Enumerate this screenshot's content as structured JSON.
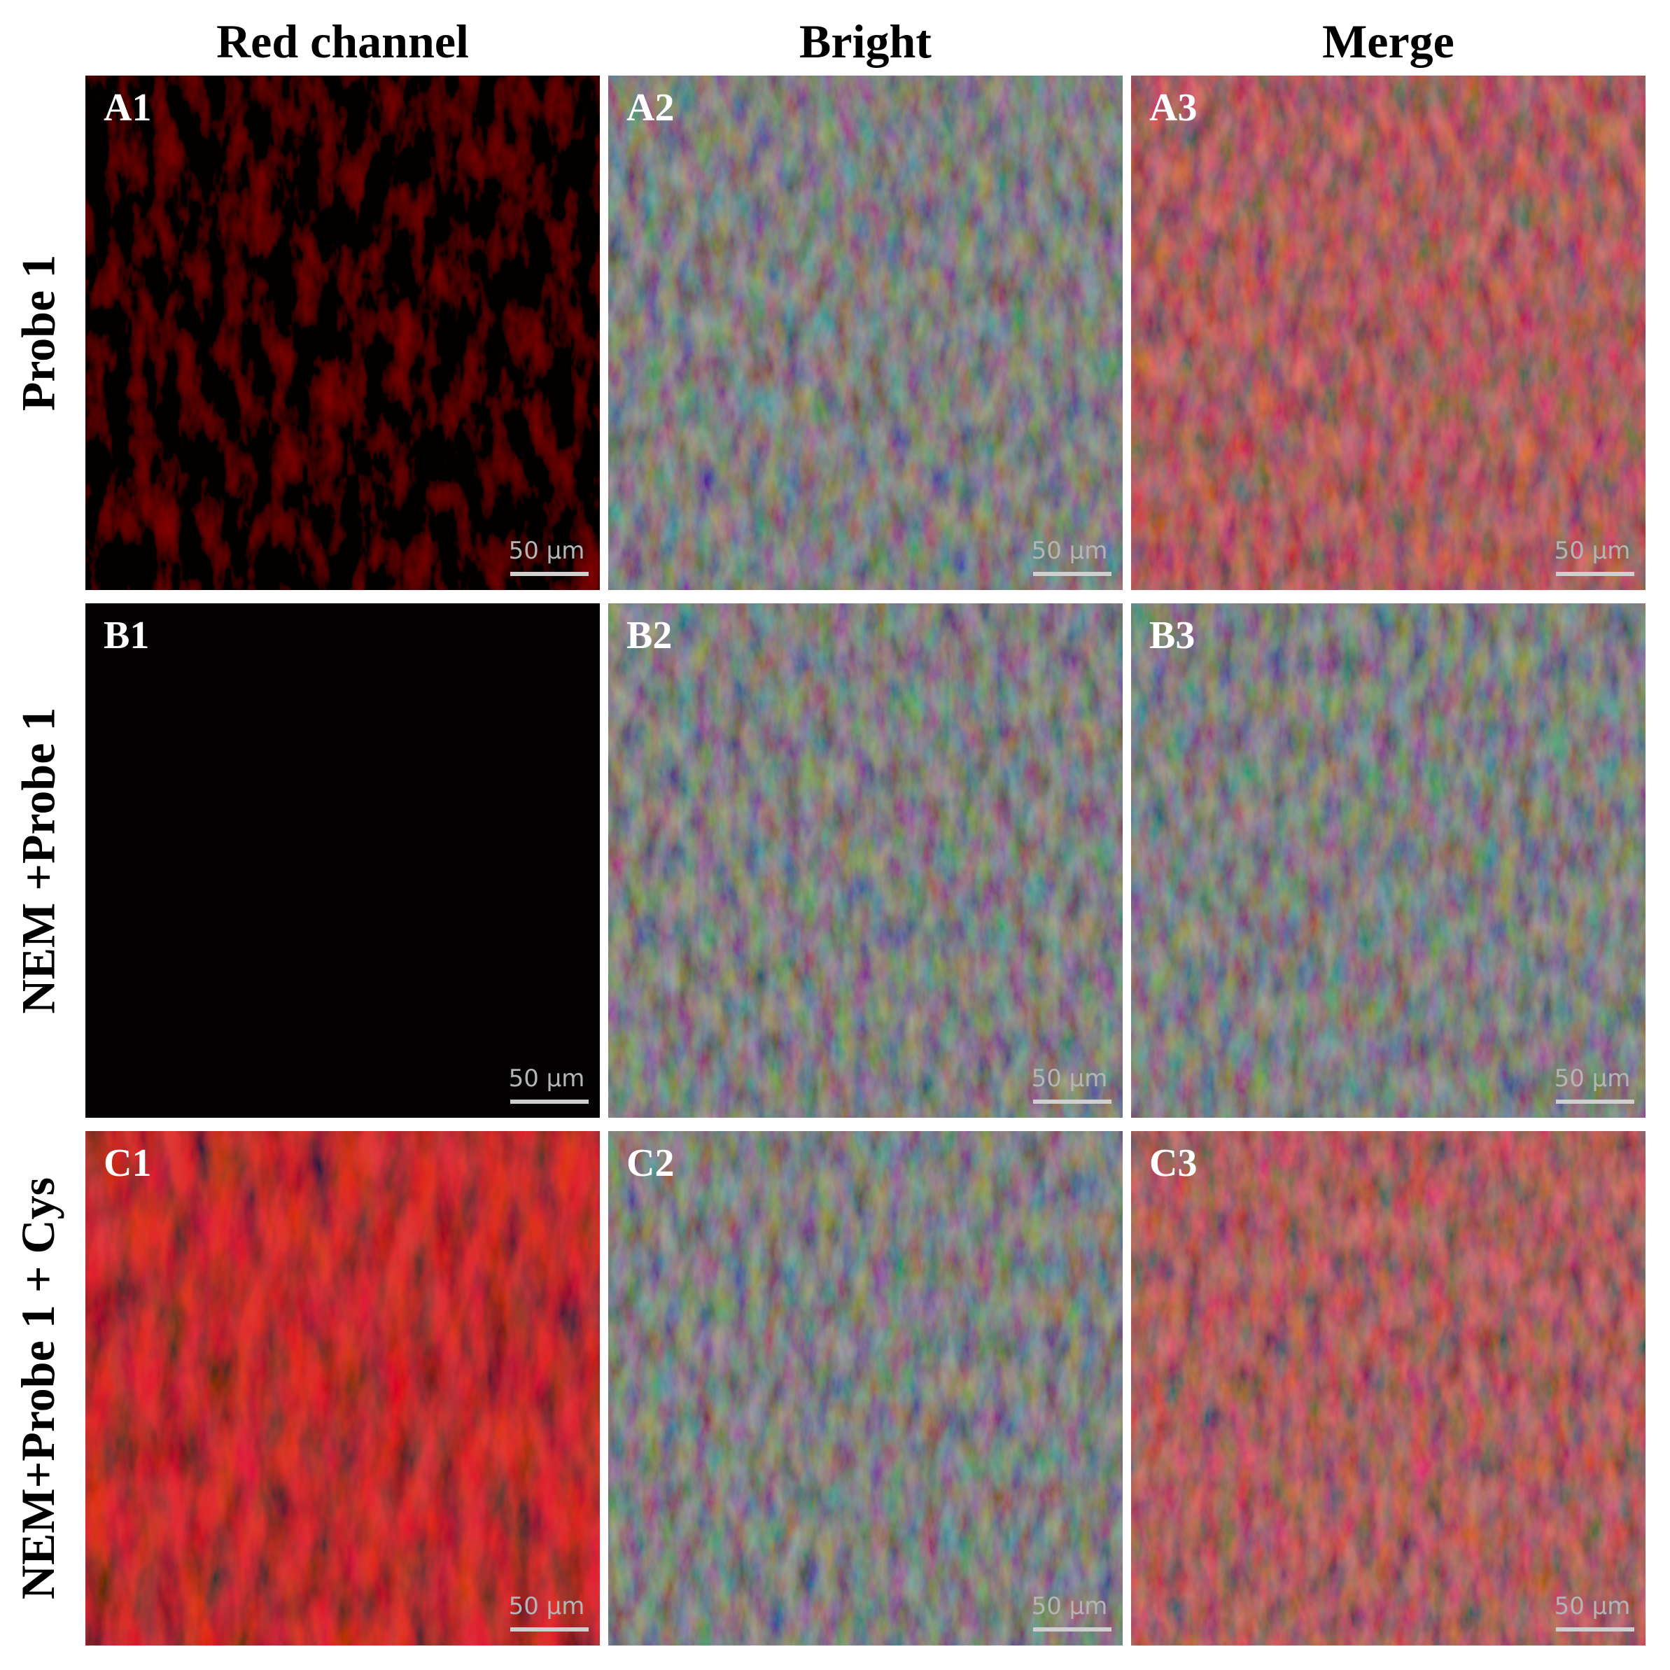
{
  "columns": [
    "Red channel",
    "Bright",
    "Merge"
  ],
  "rows": [
    "Probe 1",
    "NEM +Probe 1",
    "NEM+Probe 1 + Cys"
  ],
  "panels": [
    [
      {
        "label": "A1",
        "scale": "50 μm",
        "kind": "red-weak"
      },
      {
        "label": "A2",
        "scale": "50 μm",
        "kind": "bright"
      },
      {
        "label": "A3",
        "scale": "50 μm",
        "kind": "merge"
      }
    ],
    [
      {
        "label": "B1",
        "scale": "50 μm",
        "kind": "black"
      },
      {
        "label": "B2",
        "scale": "50 μm",
        "kind": "bright"
      },
      {
        "label": "B3",
        "scale": "50 μm",
        "kind": "bright"
      }
    ],
    [
      {
        "label": "C1",
        "scale": "50 μm",
        "kind": "red-strong"
      },
      {
        "label": "C2",
        "scale": "50 μm",
        "kind": "bright"
      },
      {
        "label": "C3",
        "scale": "50 μm",
        "kind": "merge"
      }
    ]
  ]
}
